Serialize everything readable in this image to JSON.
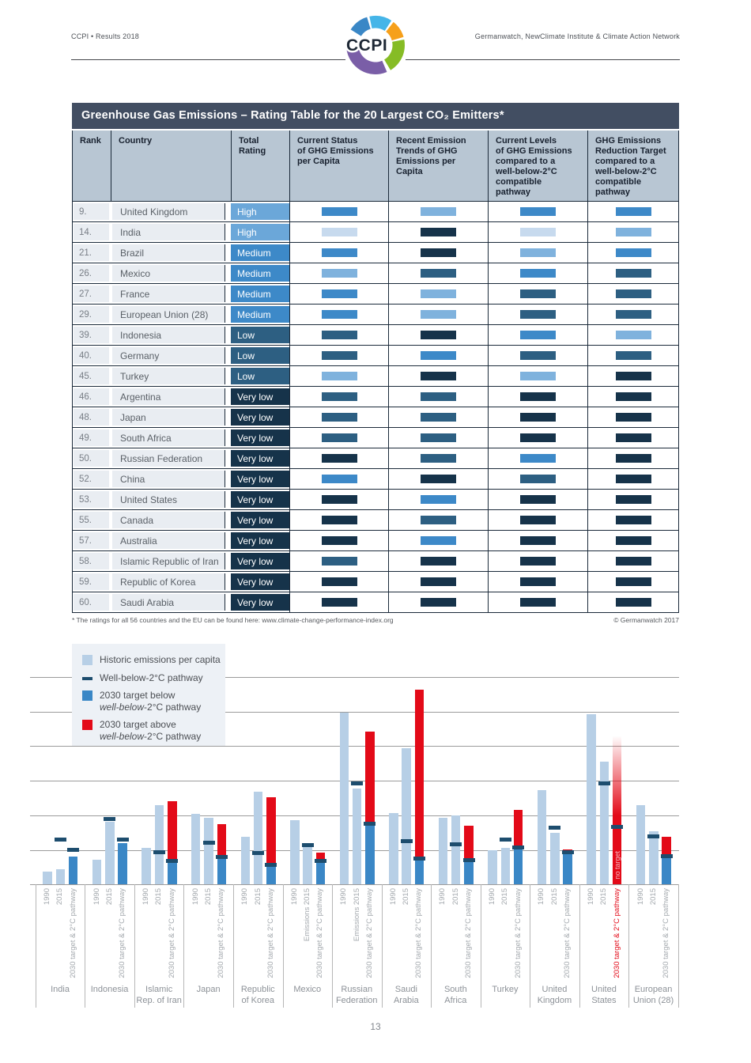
{
  "page": {
    "number": "13"
  },
  "header": {
    "left": "CCPI • Results 2018",
    "right": "Germanwatch, NewClimate Institute & Climate Action Network",
    "logo_text": "CCPI",
    "logo_colors": {
      "blue": "#3a87c6",
      "light_blue": "#45b5e8",
      "orange": "#f6a01b",
      "green": "#86bc25",
      "purple": "#7a5ea7",
      "text": "#1d2734"
    }
  },
  "table": {
    "title": "Greenhouse Gas Emissions – Rating Table for the 20 Largest CO₂ Emitters*",
    "columns": [
      "Rank",
      "Country",
      "Total\nRating",
      "Current Status\nof GHG Emissions\nper Capita",
      "Recent Emission\nTrends of GHG\nEmissions per\nCapita",
      "Current Levels\nof GHG Emissions\ncompared to a\nwell-below-2°C\ncompatible\npathway",
      "GHG Emissions\nReduction Target\ncompared to a\nwell-below-2°C\ncompatible\npathway"
    ],
    "rating_colors": {
      "High": "#6ba7d9",
      "Medium": "#3d89c8",
      "Low": "#2d5f82",
      "Very low": "#16334a"
    },
    "level_colors": {
      "L1": "#c7daee",
      "L2": "#7fb2dd",
      "L3": "#3d89c8",
      "L4": "#2d5f82",
      "L5": "#16334a"
    },
    "rows": [
      {
        "rank": "9.",
        "country": "United Kingdom",
        "rating": "High",
        "levels": [
          "L3",
          "L2",
          "L3",
          "L3"
        ]
      },
      {
        "rank": "14.",
        "country": "India",
        "rating": "High",
        "levels": [
          "L1",
          "L5",
          "L1",
          "L2"
        ]
      },
      {
        "rank": "21.",
        "country": "Brazil",
        "rating": "Medium",
        "levels": [
          "L3",
          "L5",
          "L2",
          "L3"
        ]
      },
      {
        "rank": "26.",
        "country": "Mexico",
        "rating": "Medium",
        "levels": [
          "L2",
          "L4",
          "L3",
          "L4"
        ]
      },
      {
        "rank": "27.",
        "country": "France",
        "rating": "Medium",
        "levels": [
          "L3",
          "L2",
          "L4",
          "L4"
        ]
      },
      {
        "rank": "29.",
        "country": "European Union (28)",
        "rating": "Medium",
        "levels": [
          "L3",
          "L2",
          "L4",
          "L4"
        ]
      },
      {
        "rank": "39.",
        "country": "Indonesia",
        "rating": "Low",
        "levels": [
          "L4",
          "L5",
          "L3",
          "L2"
        ]
      },
      {
        "rank": "40.",
        "country": "Germany",
        "rating": "Low",
        "levels": [
          "L4",
          "L3",
          "L4",
          "L4"
        ]
      },
      {
        "rank": "45.",
        "country": "Turkey",
        "rating": "Low",
        "levels": [
          "L2",
          "L5",
          "L2",
          "L5"
        ]
      },
      {
        "rank": "46.",
        "country": "Argentina",
        "rating": "Very low",
        "levels": [
          "L4",
          "L4",
          "L5",
          "L5"
        ]
      },
      {
        "rank": "48.",
        "country": "Japan",
        "rating": "Very low",
        "levels": [
          "L4",
          "L4",
          "L5",
          "L5"
        ]
      },
      {
        "rank": "49.",
        "country": "South Africa",
        "rating": "Very low",
        "levels": [
          "L4",
          "L4",
          "L5",
          "L5"
        ]
      },
      {
        "rank": "50.",
        "country": "Russian Federation",
        "rating": "Very low",
        "levels": [
          "L5",
          "L4",
          "L3",
          "L5"
        ]
      },
      {
        "rank": "52.",
        "country": "China",
        "rating": "Very low",
        "levels": [
          "L3",
          "L5",
          "L4",
          "L5"
        ]
      },
      {
        "rank": "53.",
        "country": "United States",
        "rating": "Very low",
        "levels": [
          "L5",
          "L3",
          "L5",
          "L5"
        ]
      },
      {
        "rank": "55.",
        "country": "Canada",
        "rating": "Very low",
        "levels": [
          "L5",
          "L4",
          "L5",
          "L5"
        ]
      },
      {
        "rank": "57.",
        "country": "Australia",
        "rating": "Very low",
        "levels": [
          "L5",
          "L3",
          "L5",
          "L5"
        ]
      },
      {
        "rank": "58.",
        "country": "Islamic Republic of Iran",
        "rating": "Very low",
        "levels": [
          "L4",
          "L5",
          "L5",
          "L5"
        ]
      },
      {
        "rank": "59.",
        "country": "Republic of Korea",
        "rating": "Very low",
        "levels": [
          "L5",
          "L5",
          "L5",
          "L5"
        ]
      },
      {
        "rank": "60.",
        "country": "Saudi Arabia",
        "rating": "Very low",
        "levels": [
          "L5",
          "L5",
          "L5",
          "L5"
        ]
      }
    ],
    "footnote_left": "* The ratings for all 56 countries and the EU can be found here: www.climate-change-performance-index.org",
    "footnote_right": "© Germanwatch 2017"
  },
  "chart_data": {
    "type": "bar",
    "title": "",
    "xlabel": "",
    "ylabel": "",
    "value_unit": "gridline units (no numeric axis labels shown; 1 unit = one horizontal gridline interval)",
    "ylim": [
      0,
      6
    ],
    "grid": true,
    "legend_position": "top-left",
    "colors": {
      "historic": "#b7cfe6",
      "target_below": "#3a87c6",
      "target_above": "#e30a18",
      "pathway": "#1d4d6e",
      "gridline": "#9b9b9b"
    },
    "legend": [
      {
        "swatch": "historic",
        "label_lines": [
          [
            {
              "t": "Historic emissions per capita"
            }
          ]
        ]
      },
      {
        "swatch": "pathway",
        "label_lines": [
          [
            {
              "t": "Well-below-2°C pathway"
            }
          ]
        ]
      },
      {
        "swatch": "target_below",
        "label_lines": [
          [
            {
              "t": "2030 target below"
            }
          ],
          [
            {
              "i": "well-below"
            },
            {
              "t": "-2°C pathway"
            }
          ]
        ]
      },
      {
        "swatch": "target_above",
        "label_lines": [
          [
            {
              "t": "2030 target above"
            }
          ],
          [
            {
              "i": "well-below"
            },
            {
              "t": "-2°C pathway"
            }
          ]
        ]
      }
    ],
    "groups": [
      {
        "country": "India",
        "country_display": "India",
        "label_1990": "1990",
        "label_2015": "2015",
        "label_2030": "2030 target & 2°C pathway",
        "hist_1990": 0.37,
        "hist_2015": 0.43,
        "pathway_2015": 1.3,
        "target_below": 0.81,
        "target_above": null,
        "pathway_2030": 1.0,
        "no_target": false
      },
      {
        "country": "Indonesia",
        "country_display": "Indonesia",
        "label_1990": "1990",
        "label_2015": "2015",
        "label_2030": "2030 target & 2°C pathway",
        "hist_1990": 0.71,
        "hist_2015": 1.82,
        "pathway_2015": 1.88,
        "target_below": 1.19,
        "target_above": null,
        "pathway_2030": 1.3,
        "no_target": false
      },
      {
        "country": "Islamic Rep. of Iran",
        "country_display": "Islamic\nRep. of Iran",
        "label_1990": "1990",
        "label_2015": "2015",
        "label_2030": "2030 target & 2°C pathway",
        "hist_1990": 1.05,
        "hist_2015": 2.28,
        "pathway_2015": 0.93,
        "target_below": 0.63,
        "target_above": 2.4,
        "pathway_2030": 0.68,
        "no_target": false
      },
      {
        "country": "Japan",
        "country_display": "Japan",
        "label_1990": "1990",
        "label_2015": "2015",
        "label_2030": "2030 target & 2°C pathway",
        "hist_1990": 2.03,
        "hist_2015": 1.92,
        "pathway_2015": 1.21,
        "target_below": 0.74,
        "target_above": 1.73,
        "pathway_2030": 0.78,
        "no_target": false
      },
      {
        "country": "Republic of Korea",
        "country_display": "Republic\nof Korea",
        "label_1990": "1990",
        "label_2015": "2015",
        "label_2030": "2030 target & 2°C pathway",
        "hist_1990": 1.38,
        "hist_2015": 2.68,
        "pathway_2015": 0.91,
        "target_below": 0.51,
        "target_above": 2.51,
        "pathway_2030": 0.57,
        "no_target": false
      },
      {
        "country": "Mexico",
        "country_display": "Mexico",
        "label_1990": "1990",
        "label_2015": "Emissions 2015",
        "label_2030": "2030 target & 2°C pathway",
        "hist_1990": 1.86,
        "hist_2015": 1.11,
        "pathway_2015": 1.14,
        "target_below": 0.63,
        "target_above": 0.91,
        "pathway_2030": 0.68,
        "no_target": false
      },
      {
        "country": "Russian Federation",
        "country_display": "Russian\nFederation",
        "label_1990": "1990",
        "label_2015": "Emissions 2015",
        "label_2030": "2030 target & 2°C pathway",
        "hist_1990": 4.97,
        "hist_2015": 2.76,
        "pathway_2015": 2.93,
        "target_below": 1.69,
        "target_above": 4.42,
        "pathway_2030": 1.75,
        "no_target": false
      },
      {
        "country": "Saudi Arabia",
        "country_display": "Saudi\nArabia",
        "label_1990": "1990",
        "label_2015": "2015",
        "label_2030": "2030 target & 2°C pathway",
        "hist_1990": 2.05,
        "hist_2015": 3.94,
        "pathway_2015": 1.25,
        "target_below": 0.69,
        "target_above": 5.62,
        "pathway_2030": 0.75,
        "no_target": false
      },
      {
        "country": "South Africa",
        "country_display": "South\nAfrica",
        "label_1990": "1990",
        "label_2015": "2015",
        "label_2030": "2030 target & 2°C pathway",
        "hist_1990": 1.92,
        "hist_2015": 2.0,
        "pathway_2015": 1.15,
        "target_below": 0.64,
        "target_above": 1.69,
        "pathway_2030": 0.69,
        "no_target": false
      },
      {
        "country": "Turkey",
        "country_display": "Turkey",
        "label_1990": "1990",
        "label_2015": "2015",
        "label_2030": "2030 target & 2°C pathway",
        "hist_1990": 0.98,
        "hist_2015": 1.05,
        "pathway_2015": 1.3,
        "target_below": 1.0,
        "target_above": 2.15,
        "pathway_2030": 1.06,
        "no_target": false
      },
      {
        "country": "United Kingdom",
        "country_display": "United\nKingdom",
        "label_1990": "1990",
        "label_2015": "2015",
        "label_2030": "2030 target & 2°C pathway",
        "hist_1990": 2.72,
        "hist_2015": 1.48,
        "pathway_2015": 1.63,
        "target_below": 0.93,
        "target_above": 1.0,
        "pathway_2030": 0.93,
        "no_target": false
      },
      {
        "country": "United States",
        "country_display": "United\nStates",
        "label_1990": "1990",
        "label_2015": "2015",
        "label_2030": "2030 target & 2°C pathway",
        "hist_1990": 4.91,
        "hist_2015": 3.54,
        "pathway_2015": 2.91,
        "target_below": null,
        "target_above": null,
        "pathway_2030": 1.67,
        "no_target": true,
        "no_target_label": "no target",
        "no_target_solid_top": 2.0,
        "no_target_fade_top": 4.3,
        "label_2030_red": true
      },
      {
        "country": "European Union (28)",
        "country_display": "European\nUnion (28)",
        "label_1990": "1990",
        "label_2015": "2015",
        "label_2030": "2030 target & 2°C pathway",
        "hist_1990": 2.3,
        "hist_2015": 1.53,
        "pathway_2015": 1.38,
        "target_below": 0.77,
        "target_above": 1.37,
        "pathway_2030": 0.82,
        "no_target": false
      }
    ]
  }
}
